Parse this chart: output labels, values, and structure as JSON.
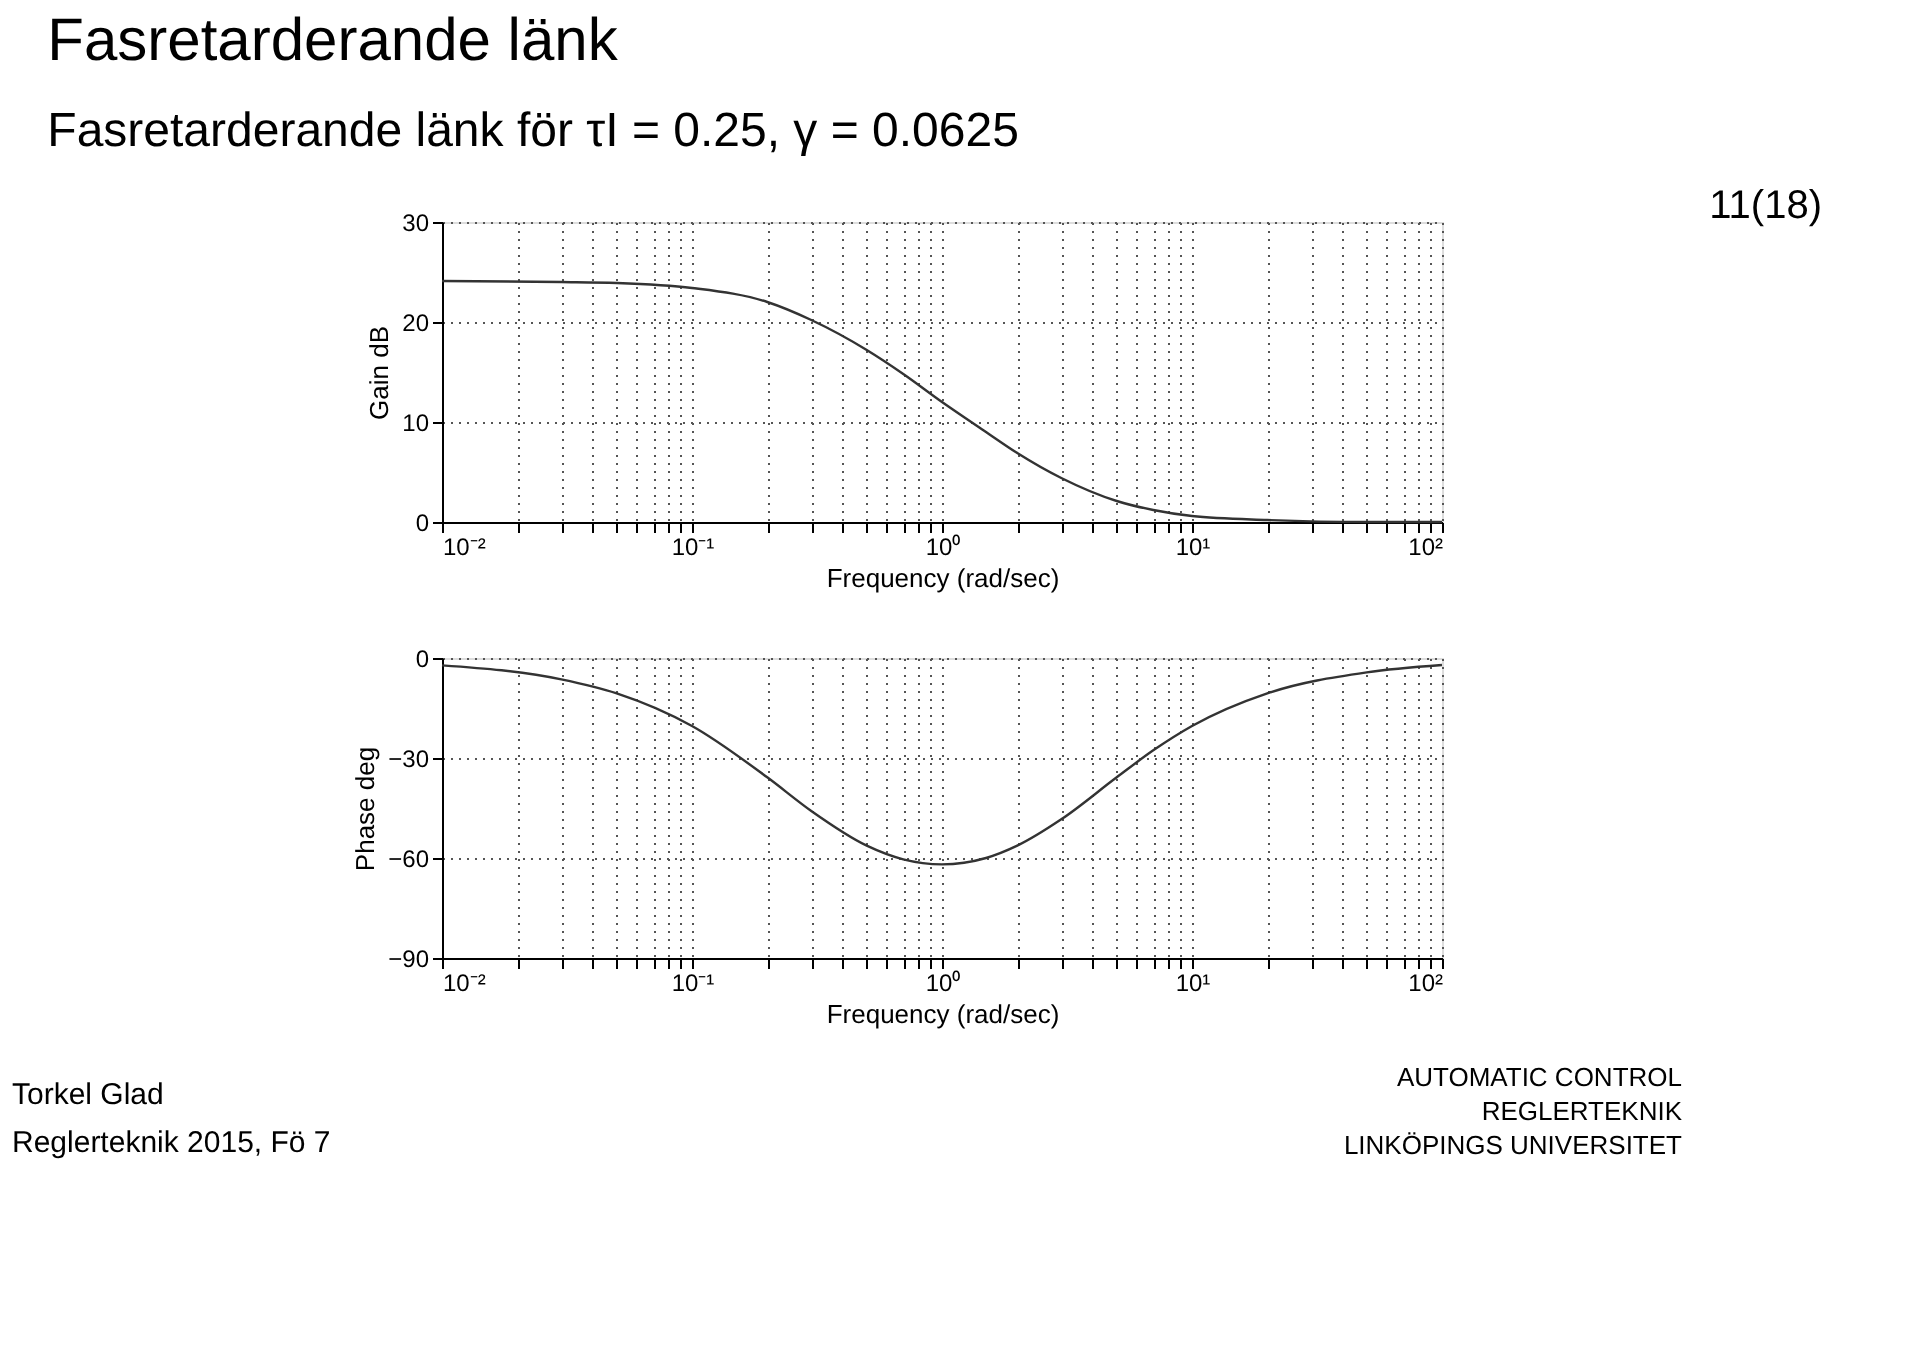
{
  "chart_data": [
    {
      "type": "line",
      "title": "Fasretarderande länk",
      "subtitle": "Fasretarderande länk för τI = 0.25, γ = 0.0625",
      "ylabel": "Gain dB",
      "xlabel": "Frequency (rad/sec)",
      "annotations": [
        "11(18)"
      ],
      "x": [
        0.01,
        0.03,
        0.05,
        0.1,
        0.2,
        0.3,
        0.5,
        0.7,
        1,
        1.5,
        2,
        3,
        5,
        7,
        10,
        20,
        50,
        100
      ],
      "series": [
        {
          "color": "#333333",
          "values": [
            24.1,
            24.0,
            23.9,
            23.4,
            22.0,
            20.2,
            17.2,
            14.8,
            12.0,
            9.0,
            6.9,
            4.4,
            2.1,
            1.2,
            0.6,
            0.2,
            0.0,
            0.0
          ]
        }
      ],
      "xlim": [
        0.01,
        100
      ],
      "ylim": [
        0,
        30
      ],
      "yticks": [
        0,
        10,
        20,
        30
      ],
      "log": "x",
      "grid": true,
      "line_style": "solid",
      "xticks": [
        {
          "value": 0.01,
          "label": "10⁻²"
        },
        {
          "value": 0.02,
          "label": null
        },
        {
          "value": 0.03,
          "label": null
        },
        {
          "value": 0.04,
          "label": null
        },
        {
          "value": 0.05,
          "label": null
        },
        {
          "value": 0.06,
          "label": null
        },
        {
          "value": 0.07,
          "label": null
        },
        {
          "value": 0.08,
          "label": null
        },
        {
          "value": 0.09,
          "label": null
        },
        {
          "value": 0.1,
          "label": "10⁻¹"
        },
        {
          "value": 0.2,
          "label": null
        },
        {
          "value": 0.3,
          "label": null
        },
        {
          "value": 0.4,
          "label": null
        },
        {
          "value": 0.5,
          "label": null
        },
        {
          "value": 0.6,
          "label": null
        },
        {
          "value": 0.7,
          "label": null
        },
        {
          "value": 0.8,
          "label": null
        },
        {
          "value": 0.9,
          "label": null
        },
        {
          "value": 1,
          "label": "10⁰"
        },
        {
          "value": 2,
          "label": null
        },
        {
          "value": 3,
          "label": null
        },
        {
          "value": 4,
          "label": null
        },
        {
          "value": 5,
          "label": null
        },
        {
          "value": 6,
          "label": null
        },
        {
          "value": 7,
          "label": null
        },
        {
          "value": 8,
          "label": null
        },
        {
          "value": 9,
          "label": null
        },
        {
          "value": 10,
          "label": "10¹"
        },
        {
          "value": 20,
          "label": null
        },
        {
          "value": 30,
          "label": null
        },
        {
          "value": 40,
          "label": null
        },
        {
          "value": 50,
          "label": null
        },
        {
          "value": 60,
          "label": null
        },
        {
          "value": 70,
          "label": null
        },
        {
          "value": 80,
          "label": null
        },
        {
          "value": 90,
          "label": null
        },
        {
          "value": 100,
          "label": "10²"
        }
      ]
    },
    {
      "type": "line",
      "ylabel": "Phase deg",
      "xlabel": "Frequency (rad/sec)",
      "annotations": [
        "Torkel Glad",
        "Reglerteknik 2015, Fö 7",
        "AUTOMATIC CONTROL",
        "REGLERTEKNIK",
        "LINKÖPINGS UNIVERSITET"
      ],
      "x": [
        0.01,
        0.03,
        0.05,
        0.1,
        0.2,
        0.3,
        0.5,
        0.7,
        1,
        1.5,
        2,
        3,
        5,
        7,
        10,
        20,
        50,
        100
      ],
      "series": [
        {
          "color": "#333333",
          "values": [
            -2.2,
            -6.4,
            -10.6,
            -20.4,
            -35.8,
            -45.9,
            -56.3,
            -60.4,
            -61.9,
            -60.0,
            -56.3,
            -48.4,
            -35.8,
            -27.7,
            -20.4,
            -10.6,
            -4.3,
            -2.1
          ]
        }
      ],
      "xlim": [
        0.01,
        100
      ],
      "ylim": [
        -90,
        0
      ],
      "yticks": [
        -90,
        -60,
        -30,
        0
      ],
      "log": "x",
      "grid": true,
      "line_style": "solid",
      "xticks": [
        {
          "value": 0.01,
          "label": "10⁻²"
        },
        {
          "value": 0.02,
          "label": null
        },
        {
          "value": 0.03,
          "label": null
        },
        {
          "value": 0.04,
          "label": null
        },
        {
          "value": 0.05,
          "label": null
        },
        {
          "value": 0.06,
          "label": null
        },
        {
          "value": 0.07,
          "label": null
        },
        {
          "value": 0.08,
          "label": null
        },
        {
          "value": 0.09,
          "label": null
        },
        {
          "value": 0.1,
          "label": "10⁻¹"
        },
        {
          "value": 0.2,
          "label": null
        },
        {
          "value": 0.3,
          "label": null
        },
        {
          "value": 0.4,
          "label": null
        },
        {
          "value": 0.5,
          "label": null
        },
        {
          "value": 0.6,
          "label": null
        },
        {
          "value": 0.7,
          "label": null
        },
        {
          "value": 0.8,
          "label": null
        },
        {
          "value": 0.9,
          "label": null
        },
        {
          "value": 1,
          "label": "10⁰"
        },
        {
          "value": 2,
          "label": null
        },
        {
          "value": 3,
          "label": null
        },
        {
          "value": 4,
          "label": null
        },
        {
          "value": 5,
          "label": null
        },
        {
          "value": 6,
          "label": null
        },
        {
          "value": 7,
          "label": null
        },
        {
          "value": 8,
          "label": null
        },
        {
          "value": 9,
          "label": null
        },
        {
          "value": 10,
          "label": "10¹"
        },
        {
          "value": 20,
          "label": null
        },
        {
          "value": 30,
          "label": null
        },
        {
          "value": 40,
          "label": null
        },
        {
          "value": 50,
          "label": null
        },
        {
          "value": 60,
          "label": null
        },
        {
          "value": 70,
          "label": null
        },
        {
          "value": 80,
          "label": null
        },
        {
          "value": 90,
          "label": null
        },
        {
          "value": 100,
          "label": "10²"
        }
      ]
    }
  ]
}
